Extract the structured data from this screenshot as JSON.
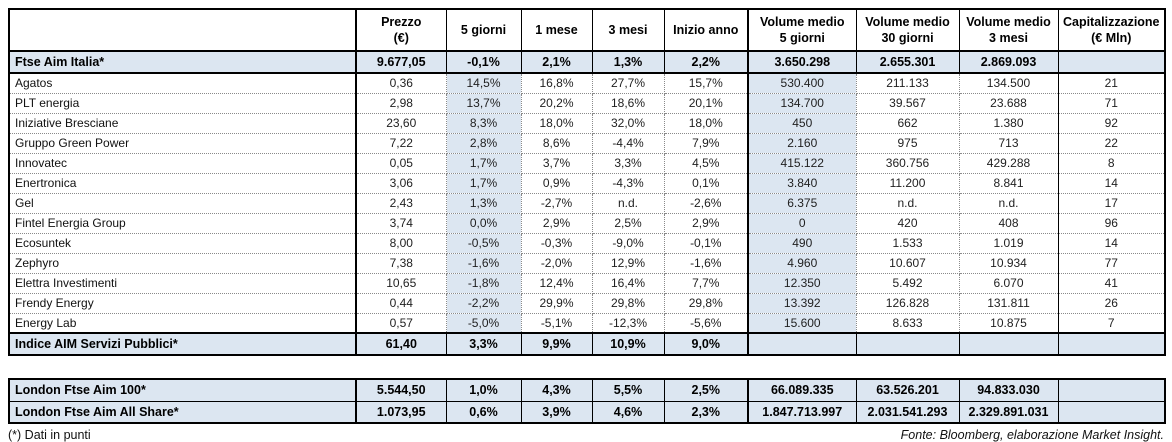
{
  "accent": {
    "highlight_bg": "#dce6f1",
    "border_color": "#000000"
  },
  "main_table": {
    "headers": [
      "",
      "Prezzo\n(€)",
      "5 giorni",
      "1 mese",
      "3 mesi",
      "Inizio anno",
      "Volume medio\n5 giorni",
      "Volume medio\n30 giorni",
      "Volume medio\n3 mesi",
      "Capitalizzazione\n(€ Mln)"
    ],
    "rows": [
      {
        "name": "Ftse Aim Italia*",
        "highlight": true,
        "values": [
          "9.677,05",
          "-0,1%",
          "2,1%",
          "1,3%",
          "2,2%",
          "3.650.298",
          "2.655.301",
          "2.869.093",
          ""
        ]
      },
      {
        "name": "Agatos",
        "highlight": false,
        "values": [
          "0,36",
          "14,5%",
          "16,8%",
          "27,7%",
          "15,7%",
          "530.400",
          "211.133",
          "134.500",
          "21"
        ]
      },
      {
        "name": "PLT energia",
        "highlight": false,
        "values": [
          "2,98",
          "13,7%",
          "20,2%",
          "18,6%",
          "20,1%",
          "134.700",
          "39.567",
          "23.688",
          "71"
        ]
      },
      {
        "name": "Iniziative Bresciane",
        "highlight": false,
        "values": [
          "23,60",
          "8,3%",
          "18,0%",
          "32,0%",
          "18,0%",
          "450",
          "662",
          "1.380",
          "92"
        ]
      },
      {
        "name": "Gruppo Green Power",
        "highlight": false,
        "values": [
          "7,22",
          "2,8%",
          "8,6%",
          "-4,4%",
          "7,9%",
          "2.160",
          "975",
          "713",
          "22"
        ]
      },
      {
        "name": "Innovatec",
        "highlight": false,
        "values": [
          "0,05",
          "1,7%",
          "3,7%",
          "3,3%",
          "4,5%",
          "415.122",
          "360.756",
          "429.288",
          "8"
        ]
      },
      {
        "name": "Enertronica",
        "highlight": false,
        "values": [
          "3,06",
          "1,7%",
          "0,9%",
          "-4,3%",
          "0,1%",
          "3.840",
          "11.200",
          "8.841",
          "14"
        ]
      },
      {
        "name": "Gel",
        "highlight": false,
        "values": [
          "2,43",
          "1,3%",
          "-2,7%",
          "n.d.",
          "-2,6%",
          "6.375",
          "n.d.",
          "n.d.",
          "17"
        ]
      },
      {
        "name": "Fintel Energia Group",
        "highlight": false,
        "values": [
          "3,74",
          "0,0%",
          "2,9%",
          "2,5%",
          "2,9%",
          "0",
          "420",
          "408",
          "96"
        ]
      },
      {
        "name": "Ecosuntek",
        "highlight": false,
        "values": [
          "8,00",
          "-0,5%",
          "-0,3%",
          "-9,0%",
          "-0,1%",
          "490",
          "1.533",
          "1.019",
          "14"
        ]
      },
      {
        "name": "Zephyro",
        "highlight": false,
        "values": [
          "7,38",
          "-1,6%",
          "-2,0%",
          "12,9%",
          "-1,6%",
          "4.960",
          "10.607",
          "10.934",
          "77"
        ]
      },
      {
        "name": "Elettra Investimenti",
        "highlight": false,
        "values": [
          "10,65",
          "-1,8%",
          "12,4%",
          "16,4%",
          "7,7%",
          "12.350",
          "5.492",
          "6.070",
          "41"
        ]
      },
      {
        "name": "Frendy Energy",
        "highlight": false,
        "values": [
          "0,44",
          "-2,2%",
          "29,9%",
          "29,8%",
          "29,8%",
          "13.392",
          "126.828",
          "131.811",
          "26"
        ]
      },
      {
        "name": "Energy Lab",
        "highlight": false,
        "values": [
          "0,57",
          "-5,0%",
          "-5,1%",
          "-12,3%",
          "-5,6%",
          "15.600",
          "8.633",
          "10.875",
          "7"
        ]
      },
      {
        "name": "Indice AIM Servizi Pubblici*",
        "highlight": true,
        "values": [
          "61,40",
          "3,3%",
          "9,9%",
          "10,9%",
          "9,0%",
          "",
          "",
          "",
          ""
        ]
      }
    ]
  },
  "london_table": {
    "rows": [
      {
        "name": "London Ftse Aim 100*",
        "highlight": true,
        "values": [
          "5.544,50",
          "1,0%",
          "4,3%",
          "5,5%",
          "2,5%",
          "66.089.335",
          "63.526.201",
          "94.833.030",
          ""
        ]
      },
      {
        "name": "London Ftse Aim All Share*",
        "highlight": true,
        "values": [
          "1.073,95",
          "0,6%",
          "3,9%",
          "4,6%",
          "2,3%",
          "1.847.713.997",
          "2.031.541.293",
          "2.329.891.031",
          ""
        ]
      }
    ]
  },
  "footer": {
    "footnote": "(*) Dati in punti",
    "source": "Fonte: Bloomberg, elaborazione Market Insight."
  }
}
